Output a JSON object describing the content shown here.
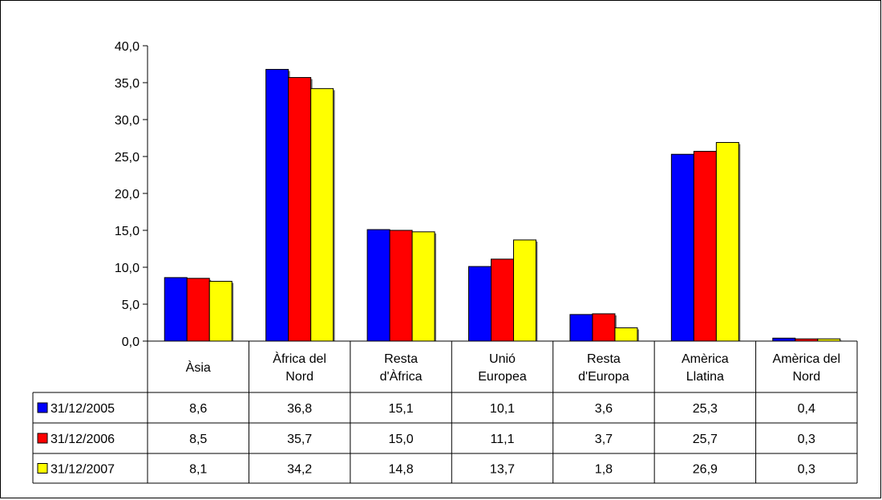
{
  "chart_data": {
    "type": "bar",
    "title": "",
    "xlabel": "",
    "ylabel": "",
    "ylim": [
      0,
      40
    ],
    "y_ticks": [
      "0,0",
      "5,0",
      "10,0",
      "15,0",
      "20,0",
      "25,0",
      "30,0",
      "35,0",
      "40,0"
    ],
    "grid": false,
    "legend": "data-table",
    "categories": [
      [
        "Àsia"
      ],
      [
        "Àfrica del",
        "Nord"
      ],
      [
        "Resta",
        "d'Àfrica"
      ],
      [
        "Unió",
        "Europea"
      ],
      [
        "Resta",
        "d'Europa"
      ],
      [
        "Amèrica",
        "Llatina"
      ],
      [
        "Amèrica del",
        "Nord"
      ]
    ],
    "series": [
      {
        "name": "31/12/2005",
        "color": "#0000FF",
        "values": [
          8.6,
          36.8,
          15.1,
          10.1,
          3.6,
          25.3,
          0.4
        ],
        "labels": [
          "8,6",
          "36,8",
          "15,1",
          "10,1",
          "3,6",
          "25,3",
          "0,4"
        ]
      },
      {
        "name": "31/12/2006",
        "color": "#FF0000",
        "values": [
          8.5,
          35.7,
          15.0,
          11.1,
          3.7,
          25.7,
          0.3
        ],
        "labels": [
          "8,5",
          "35,7",
          "15,0",
          "11,1",
          "3,7",
          "25,7",
          "0,3"
        ]
      },
      {
        "name": "31/12/2007",
        "color": "#FFFF00",
        "values": [
          8.1,
          34.2,
          14.8,
          13.7,
          1.8,
          26.9,
          0.3
        ],
        "labels": [
          "8,1",
          "34,2",
          "14,8",
          "13,7",
          "1,8",
          "26,9",
          "0,3"
        ]
      }
    ]
  }
}
